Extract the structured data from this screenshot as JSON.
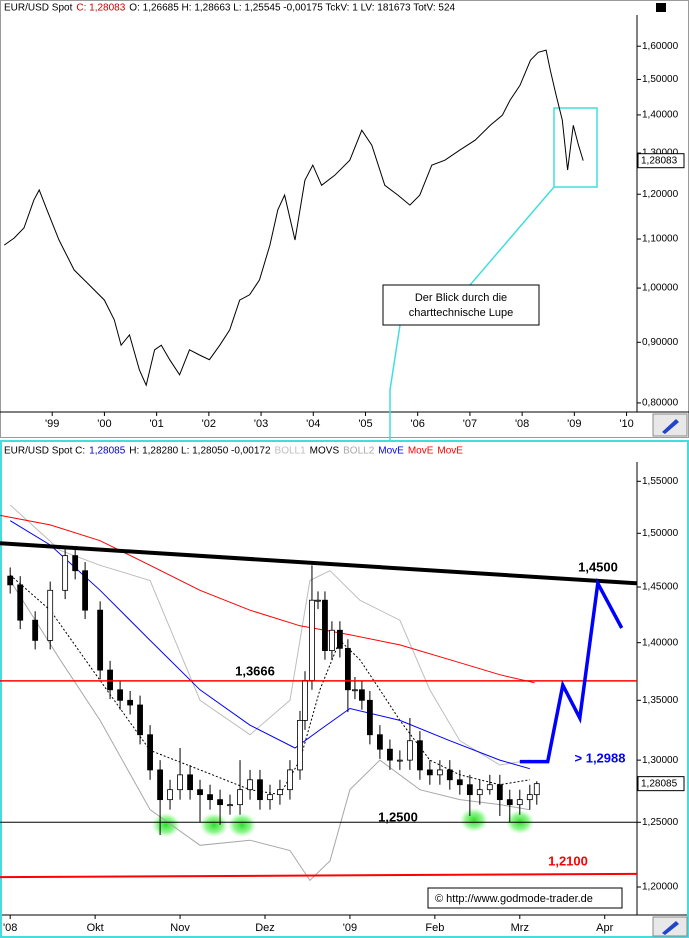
{
  "chart_data": [
    {
      "type": "line",
      "header": [
        {
          "text": "EUR/USD Spot",
          "color": "#000000"
        },
        {
          "text": "C: 1,28083",
          "color": "#cc0000"
        },
        {
          "text": "O: 1,26685 H: 1,28663 L: 1,25545 -0,00175 TckV: 1 LV: 181673 TotV: 524",
          "color": "#000000"
        }
      ],
      "ylog": true,
      "ylim": [
        0.786,
        1.7
      ],
      "yticks": [
        {
          "value": 0.8,
          "label": "0,80000"
        },
        {
          "value": 0.9,
          "label": "0,90000"
        },
        {
          "value": 1.0,
          "label": "1,00000"
        },
        {
          "value": 1.1,
          "label": "1,10000"
        },
        {
          "value": 1.2,
          "label": "1,20000"
        },
        {
          "value": 1.3,
          "label": "1,30000"
        },
        {
          "value": 1.4,
          "label": "1,40000"
        },
        {
          "value": 1.5,
          "label": "1,50000"
        },
        {
          "value": 1.6,
          "label": "1,60000"
        }
      ],
      "xlim": [
        1998,
        2010.2
      ],
      "xticks": [
        {
          "value": 1999,
          "label": "'99"
        },
        {
          "value": 2000,
          "label": "'00"
        },
        {
          "value": 2001,
          "label": "'01"
        },
        {
          "value": 2002,
          "label": "'02"
        },
        {
          "value": 2003,
          "label": "'03"
        },
        {
          "value": 2004,
          "label": "'04"
        },
        {
          "value": 2005,
          "label": "'05"
        },
        {
          "value": 2006,
          "label": "'06"
        },
        {
          "value": 2007,
          "label": "'07"
        },
        {
          "value": 2008,
          "label": "'08"
        },
        {
          "value": 2009,
          "label": "'09"
        },
        {
          "value": 2010,
          "label": "'10"
        }
      ],
      "color": "#000000",
      "x": [
        1998.08,
        1998.27,
        1998.46,
        1998.65,
        1998.75,
        1998.9,
        1999.13,
        1999.42,
        1999.71,
        2000.0,
        2000.19,
        2000.32,
        2000.48,
        2000.67,
        2000.8,
        2000.96,
        2001.09,
        2001.25,
        2001.44,
        2001.63,
        2001.82,
        2002.01,
        2002.21,
        2002.4,
        2002.59,
        2002.78,
        2002.97,
        2003.17,
        2003.32,
        2003.45,
        2003.65,
        2003.84,
        2003.99,
        2004.16,
        2004.41,
        2004.7,
        2004.93,
        2005.12,
        2005.37,
        2005.62,
        2005.85,
        2006.04,
        2006.27,
        2006.52,
        2006.81,
        2007.1,
        2007.39,
        2007.62,
        2007.77,
        2007.96,
        2008.16,
        2008.31,
        2008.46,
        2008.54,
        2008.65,
        2008.77,
        2008.87,
        2008.98,
        2009.08,
        2009.17
      ],
      "values": [
        1.087,
        1.102,
        1.124,
        1.187,
        1.21,
        1.164,
        1.098,
        1.036,
        1.006,
        0.977,
        0.94,
        0.895,
        0.913,
        0.853,
        0.828,
        0.887,
        0.895,
        0.87,
        0.845,
        0.887,
        0.878,
        0.87,
        0.895,
        0.922,
        0.977,
        0.987,
        1.016,
        1.087,
        1.164,
        1.198,
        1.098,
        1.233,
        1.27,
        1.221,
        1.245,
        1.282,
        1.359,
        1.32,
        1.221,
        1.198,
        1.175,
        1.198,
        1.27,
        1.282,
        1.308,
        1.333,
        1.372,
        1.399,
        1.441,
        1.483,
        1.557,
        1.581,
        1.588,
        1.527,
        1.455,
        1.386,
        1.258,
        1.372,
        1.32,
        1.281
      ],
      "last_price": {
        "value": 1.28083,
        "label": "1,28083"
      },
      "annotation": [
        "Der Blick durch die",
        "charttechnische Lupe"
      ]
    },
    {
      "type": "candlestick",
      "header": [
        {
          "text": "EUR/USD Spot C:",
          "color": "#000000"
        },
        {
          "text": "1,28085",
          "color": "#0000cc"
        },
        {
          "text": "H: 1,28280 L: 1,28050 -0,00172",
          "color": "#000000"
        }
      ],
      "ylog": true,
      "ylim": [
        1.179,
        1.569
      ],
      "yticks": [
        {
          "value": 1.2,
          "label": "1,20000"
        },
        {
          "value": 1.25,
          "label": "1,25000"
        },
        {
          "value": 1.3,
          "label": "1,30000"
        },
        {
          "value": 1.35,
          "label": "1,35000"
        },
        {
          "value": 1.4,
          "label": "1,40000"
        },
        {
          "value": 1.45,
          "label": "1,45000"
        },
        {
          "value": 1.5,
          "label": "1,50000"
        },
        {
          "value": 1.55,
          "label": "1,55000"
        }
      ],
      "xlim": [
        -0.12,
        7.38
      ],
      "xticks": [
        {
          "value": 0,
          "label": "'08"
        },
        {
          "value": 1,
          "label": "Okt"
        },
        {
          "value": 2,
          "label": "Nov"
        },
        {
          "value": 3,
          "label": "Dez"
        },
        {
          "value": 4,
          "label": "'09"
        },
        {
          "value": 5,
          "label": "Feb"
        },
        {
          "value": 6,
          "label": "Mrz"
        },
        {
          "value": 7,
          "label": "Apr"
        }
      ],
      "x": [
        0,
        0.118,
        0.294,
        0.471,
        0.647,
        0.765,
        0.882,
        1.059,
        1.176,
        1.294,
        1.412,
        1.529,
        1.647,
        1.765,
        1.882,
        2,
        2.118,
        2.235,
        2.353,
        2.471,
        2.588,
        2.706,
        2.824,
        2.941,
        3.059,
        3.176,
        3.294,
        3.412,
        3.471,
        3.553,
        3.624,
        3.706,
        3.788,
        3.882,
        3.976,
        4.059,
        4.141,
        4.235,
        4.353,
        4.471,
        4.588,
        4.706,
        4.824,
        4.941,
        5.059,
        5.176,
        5.294,
        5.412,
        5.529,
        5.647,
        5.765,
        5.882,
        6,
        6.118,
        6.2
      ],
      "open": [
        1.46,
        1.452,
        1.42,
        1.402,
        1.447,
        1.479,
        1.465,
        1.429,
        1.376,
        1.359,
        1.35,
        1.346,
        1.321,
        1.292,
        1.268,
        1.276,
        1.288,
        1.276,
        1.272,
        1.268,
        1.264,
        1.264,
        1.276,
        1.284,
        1.268,
        1.272,
        1.276,
        1.292,
        1.333,
        1.367,
        1.438,
        1.438,
        1.393,
        1.411,
        1.395,
        1.359,
        1.359,
        1.35,
        1.321,
        1.309,
        1.3,
        1.3,
        1.316,
        1.292,
        1.288,
        1.292,
        1.284,
        1.28,
        1.272,
        1.276,
        1.28,
        1.268,
        1.264,
        1.268,
        1.272
      ],
      "high": [
        1.468,
        1.46,
        1.428,
        1.455,
        1.487,
        1.487,
        1.473,
        1.437,
        1.384,
        1.367,
        1.358,
        1.354,
        1.329,
        1.3,
        1.284,
        1.31,
        1.296,
        1.284,
        1.28,
        1.276,
        1.272,
        1.3,
        1.292,
        1.292,
        1.28,
        1.284,
        1.3,
        1.341,
        1.375,
        1.47,
        1.446,
        1.446,
        1.419,
        1.419,
        1.403,
        1.37,
        1.367,
        1.358,
        1.329,
        1.317,
        1.308,
        1.335,
        1.324,
        1.3,
        1.3,
        1.3,
        1.292,
        1.288,
        1.284,
        1.288,
        1.288,
        1.276,
        1.276,
        1.28,
        1.2828
      ],
      "low": [
        1.444,
        1.412,
        1.394,
        1.394,
        1.439,
        1.457,
        1.421,
        1.368,
        1.351,
        1.342,
        1.338,
        1.313,
        1.284,
        1.24,
        1.26,
        1.268,
        1.268,
        1.25,
        1.26,
        1.248,
        1.256,
        1.256,
        1.268,
        1.26,
        1.26,
        1.264,
        1.268,
        1.284,
        1.325,
        1.359,
        1.43,
        1.385,
        1.385,
        1.387,
        1.34,
        1.351,
        1.342,
        1.313,
        1.301,
        1.292,
        1.292,
        1.292,
        1.284,
        1.28,
        1.28,
        1.276,
        1.272,
        1.255,
        1.264,
        1.272,
        1.255,
        1.25,
        1.256,
        1.26,
        1.264
      ],
      "close": [
        1.452,
        1.42,
        1.402,
        1.447,
        1.479,
        1.465,
        1.429,
        1.376,
        1.359,
        1.35,
        1.346,
        1.321,
        1.292,
        1.268,
        1.276,
        1.288,
        1.276,
        1.272,
        1.268,
        1.264,
        1.264,
        1.276,
        1.284,
        1.268,
        1.272,
        1.276,
        1.292,
        1.333,
        1.367,
        1.438,
        1.438,
        1.393,
        1.411,
        1.395,
        1.359,
        1.359,
        1.35,
        1.321,
        1.309,
        1.3,
        1.3,
        1.316,
        1.292,
        1.288,
        1.292,
        1.284,
        1.28,
        1.272,
        1.276,
        1.28,
        1.268,
        1.264,
        1.268,
        1.272,
        1.28085
      ],
      "series": [
        {
          "name": "BOLL1",
          "color": "#bdbdbd",
          "x": [
            0,
            0.588,
            1.059,
            1.647,
            2.235,
            2.824,
            3.294,
            3.529,
            3.765,
            4.118,
            4.588,
            4.941,
            5.294,
            5.765,
            6.118
          ],
          "values": [
            1.527,
            1.484,
            1.47,
            1.456,
            1.35,
            1.321,
            1.35,
            1.456,
            1.465,
            1.438,
            1.42,
            1.359,
            1.316,
            1.296,
            1.3
          ]
        },
        {
          "name": "MOVS",
          "color": "#000000",
          "dash": true,
          "x": [
            0,
            0.471,
            1.059,
            1.647,
            2.235,
            2.824,
            3.176,
            3.412,
            3.647,
            3.882,
            4.118,
            4.353,
            4.588,
            4.941,
            5.294,
            5.765,
            6.118
          ],
          "values": [
            1.461,
            1.429,
            1.367,
            1.308,
            1.292,
            1.276,
            1.272,
            1.3,
            1.359,
            1.402,
            1.385,
            1.359,
            1.333,
            1.3,
            1.288,
            1.28,
            1.284
          ]
        },
        {
          "name": "BOLL2",
          "color": "#a8a8a8",
          "x": [
            0,
            0.588,
            1.059,
            1.647,
            2.235,
            2.824,
            3.294,
            3.529,
            3.765,
            4.0,
            4.353,
            4.824,
            5.294,
            5.765,
            6.118
          ],
          "values": [
            1.456,
            1.385,
            1.333,
            1.26,
            1.232,
            1.236,
            1.228,
            1.205,
            1.22,
            1.276,
            1.3,
            1.276,
            1.268,
            1.264,
            1.26
          ]
        },
        {
          "name": "MovE",
          "color": "#0000ff",
          "x": [
            0,
            0.471,
            1.059,
            1.647,
            2.235,
            2.824,
            3.353,
            3.647,
            4.0,
            4.588,
            5.176,
            5.765,
            6.118
          ],
          "values": [
            1.512,
            1.489,
            1.447,
            1.402,
            1.359,
            1.329,
            1.31,
            1.325,
            1.343,
            1.333,
            1.316,
            1.3,
            1.293
          ]
        },
        {
          "name": "MovE",
          "color": "#ff0000",
          "x": [
            -0.118,
            0.471,
            1.059,
            1.647,
            2.235,
            2.824,
            3.412,
            4.0,
            4.588,
            5.176,
            5.765,
            6.176
          ],
          "values": [
            1.517,
            1.508,
            1.493,
            1.47,
            1.447,
            1.429,
            1.415,
            1.407,
            1.398,
            1.385,
            1.372,
            1.365
          ]
        }
      ],
      "extra_legend": [
        {
          "text": "MovE",
          "color": "#ff0000"
        }
      ],
      "lines": [
        {
          "label": "1,4500",
          "color": "#000000",
          "label_color": "#000000",
          "width": 4,
          "x": [
            -0.12,
            7.38
          ],
          "values": [
            1.4906,
            1.4534
          ]
        },
        {
          "label": "1,3666",
          "color": "#ff0000",
          "label_color": "#000000",
          "width": 1.5,
          "x": [
            -0.12,
            7.38
          ],
          "values": [
            1.3666,
            1.3666
          ]
        },
        {
          "label": "1,2500",
          "color": "#000000",
          "label_color": "#000000",
          "width": 1,
          "x": [
            -0.12,
            7.38
          ],
          "values": [
            1.25,
            1.25
          ]
        },
        {
          "label": "1,2100",
          "color": "#ff0000",
          "label_color": "#ff0000",
          "width": 2,
          "x": [
            -0.12,
            7.38
          ],
          "values": [
            1.2075,
            1.21
          ]
        }
      ],
      "projection": {
        "label": "> 1,2988",
        "color": "#0000ff",
        "x": [
          6.0,
          6.329,
          6.506,
          6.706,
          6.918,
          7.2
        ],
        "values": [
          1.2988,
          1.2988,
          1.363,
          1.335,
          1.4534,
          1.413
        ]
      },
      "last_price": {
        "value": 1.28085,
        "label": "1,28085"
      },
      "copyright": "© http://www.godmode-trader.de"
    }
  ]
}
